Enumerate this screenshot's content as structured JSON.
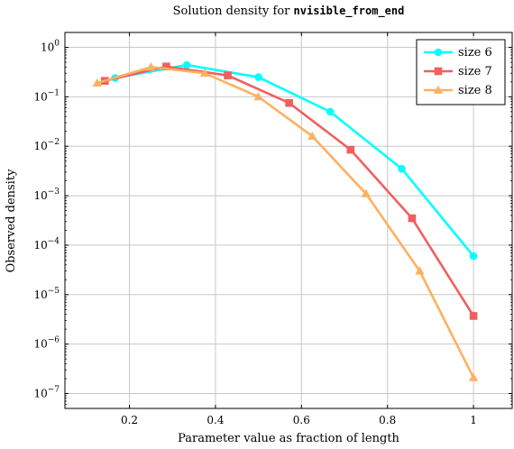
{
  "chart_data": {
    "type": "line",
    "title_prefix": "Solution density for ",
    "title_code": "nvisible_from_end",
    "xlabel": "Parameter value as fraction of length",
    "ylabel": "Observed density",
    "x_scale": "linear",
    "y_scale": "log",
    "xlim": [
      0.05,
      1.09
    ],
    "ylim": [
      5e-08,
      2
    ],
    "x_ticks": [
      {
        "value": 0.2,
        "label": "0.2"
      },
      {
        "value": 0.4,
        "label": "0.4"
      },
      {
        "value": 0.6,
        "label": "0.6"
      },
      {
        "value": 0.8,
        "label": "0.8"
      },
      {
        "value": 1.0,
        "label": "1"
      }
    ],
    "y_ticks": [
      {
        "value": 1e-07,
        "base": "10",
        "exp": "−7"
      },
      {
        "value": 1e-06,
        "base": "10",
        "exp": "−6"
      },
      {
        "value": 1e-05,
        "base": "10",
        "exp": "−5"
      },
      {
        "value": 0.0001,
        "base": "10",
        "exp": "−4"
      },
      {
        "value": 0.001,
        "base": "10",
        "exp": "−3"
      },
      {
        "value": 0.01,
        "base": "10",
        "exp": "−2"
      },
      {
        "value": 0.1,
        "base": "10",
        "exp": "−1"
      },
      {
        "value": 1,
        "base": "10",
        "exp": "0"
      }
    ],
    "grid": true,
    "legend_position": "top-right",
    "series": [
      {
        "name": "size 6",
        "color": "#00ffff",
        "marker": "circle",
        "x": [
          0.1667,
          0.3333,
          0.5,
          0.6667,
          0.8333,
          1.0
        ],
        "y": [
          0.24,
          0.44,
          0.25,
          0.05,
          0.0035,
          6e-05
        ]
      },
      {
        "name": "size 7",
        "color": "#f06060",
        "marker": "square",
        "x": [
          0.1429,
          0.2857,
          0.4286,
          0.5714,
          0.7143,
          0.8571,
          1.0
        ],
        "y": [
          0.21,
          0.41,
          0.27,
          0.075,
          0.0085,
          0.00035,
          3.7e-06
        ]
      },
      {
        "name": "size 8",
        "color": "#ffb060",
        "marker": "triangle",
        "x": [
          0.125,
          0.25,
          0.375,
          0.5,
          0.625,
          0.75,
          0.875,
          1.0
        ],
        "y": [
          0.19,
          0.4,
          0.3,
          0.1,
          0.016,
          0.0011,
          3e-05,
          2.1e-07
        ]
      }
    ]
  }
}
